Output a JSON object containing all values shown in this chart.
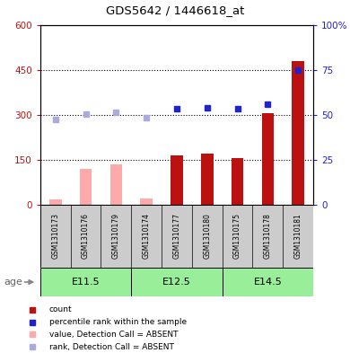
{
  "title": "GDS5642 / 1446618_at",
  "samples": [
    "GSM1310173",
    "GSM1310176",
    "GSM1310179",
    "GSM1310174",
    "GSM1310177",
    "GSM1310180",
    "GSM1310175",
    "GSM1310178",
    "GSM1310181"
  ],
  "age_groups": [
    {
      "label": "E11.5",
      "start": 0,
      "end": 3
    },
    {
      "label": "E12.5",
      "start": 3,
      "end": 6
    },
    {
      "label": "E14.5",
      "start": 6,
      "end": 9
    }
  ],
  "count_values": [
    null,
    null,
    null,
    null,
    165,
    172,
    155,
    305,
    480
  ],
  "count_absent": [
    18,
    120,
    135,
    22,
    null,
    null,
    null,
    null,
    null
  ],
  "rank_present": [
    null,
    null,
    null,
    null,
    320,
    325,
    320,
    337,
    450
  ],
  "rank_absent": [
    285,
    302,
    308,
    292,
    null,
    null,
    null,
    null,
    null
  ],
  "ylim_left": [
    0,
    600
  ],
  "yticks_left": [
    0,
    150,
    300,
    450,
    600
  ],
  "ytick_labels_left": [
    "0",
    "150",
    "300",
    "450",
    "600"
  ],
  "yticks_right": [
    0,
    25,
    50,
    75,
    100
  ],
  "ytick_labels_right": [
    "0",
    "25",
    "50",
    "75",
    "100%"
  ],
  "color_count": "#bb1111",
  "color_rank_present": "#2222cc",
  "color_count_absent": "#ffaaaa",
  "color_rank_absent": "#aaaadd",
  "color_age_bg": "#99ee99",
  "color_sample_bg": "#cccccc",
  "dotted_ticks": [
    150,
    300,
    450
  ],
  "bar_width": 0.4,
  "legend_items": [
    {
      "color": "#bb1111",
      "label": "count"
    },
    {
      "color": "#2222cc",
      "label": "percentile rank within the sample"
    },
    {
      "color": "#ffaaaa",
      "label": "value, Detection Call = ABSENT"
    },
    {
      "color": "#aaaadd",
      "label": "rank, Detection Call = ABSENT"
    }
  ]
}
